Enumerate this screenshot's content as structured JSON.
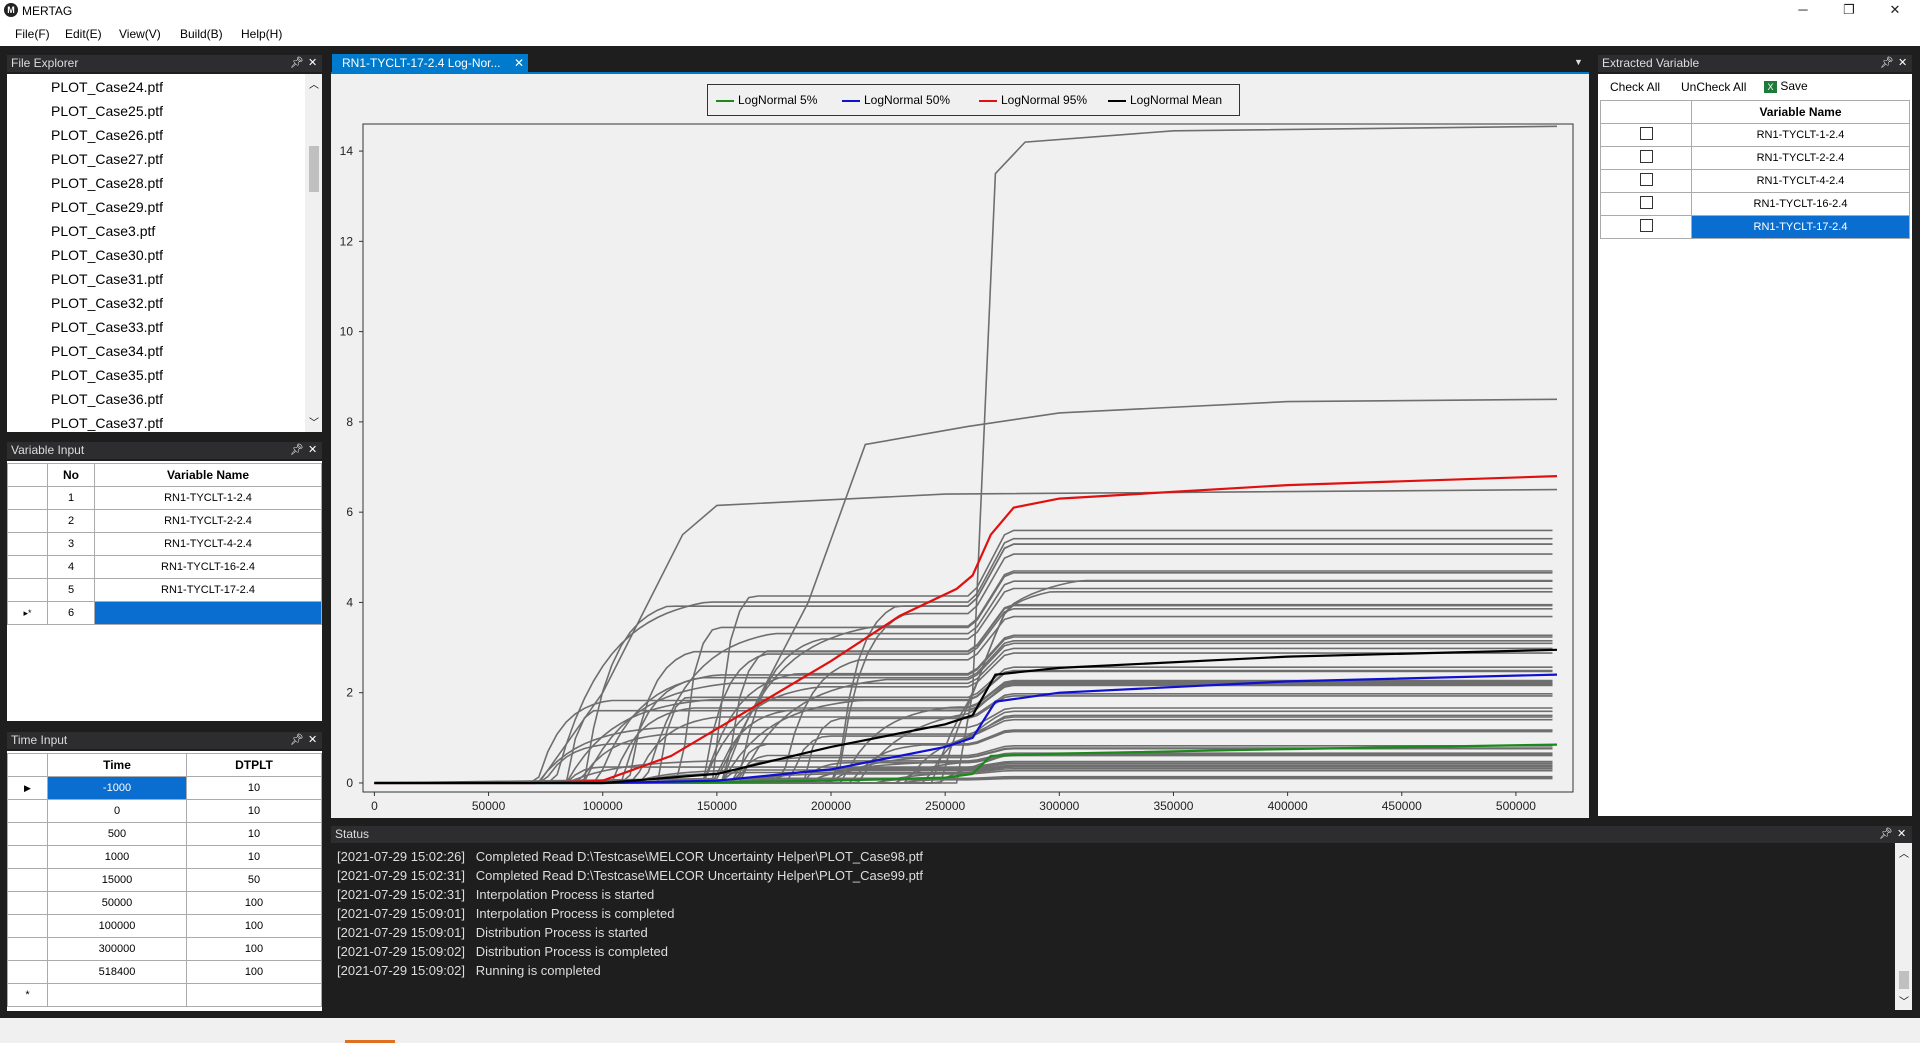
{
  "app": {
    "title": "MERTAG",
    "icon": "mertag-logo-icon"
  },
  "window_controls": [
    "─",
    "❐",
    "✕"
  ],
  "menu": [
    "File(F)",
    "Edit(E)",
    "View(V)",
    "Build(B)",
    "Help(H)"
  ],
  "file_explorer": {
    "title": "File Explorer",
    "files": [
      "PLOT_Case24.ptf",
      "PLOT_Case25.ptf",
      "PLOT_Case26.ptf",
      "PLOT_Case27.ptf",
      "PLOT_Case28.ptf",
      "PLOT_Case29.ptf",
      "PLOT_Case3.ptf",
      "PLOT_Case30.ptf",
      "PLOT_Case31.ptf",
      "PLOT_Case32.ptf",
      "PLOT_Case33.ptf",
      "PLOT_Case34.ptf",
      "PLOT_Case35.ptf",
      "PLOT_Case36.ptf",
      "PLOT_Case37.ptf"
    ]
  },
  "variable_input": {
    "title": "Variable Input",
    "headers": [
      "No",
      "Variable Name"
    ],
    "rows": [
      [
        "1",
        "RN1-TYCLT-1-2.4"
      ],
      [
        "2",
        "RN1-TYCLT-2-2.4"
      ],
      [
        "3",
        "RN1-TYCLT-4-2.4"
      ],
      [
        "4",
        "RN1-TYCLT-16-2.4"
      ],
      [
        "5",
        "RN1-TYCLT-17-2.4"
      ]
    ],
    "new_row": {
      "marker": "▸*",
      "no": "6"
    }
  },
  "time_input": {
    "title": "Time Input",
    "headers": [
      "Time",
      "DTPLT"
    ],
    "rows": [
      [
        "-1000",
        "10"
      ],
      [
        "0",
        "10"
      ],
      [
        "500",
        "10"
      ],
      [
        "1000",
        "10"
      ],
      [
        "15000",
        "50"
      ],
      [
        "50000",
        "100"
      ],
      [
        "100000",
        "100"
      ],
      [
        "300000",
        "100"
      ],
      [
        "518400",
        "100"
      ]
    ],
    "new_row_marker": "*"
  },
  "tab": {
    "label": "RN1-TYCLT-17-2.4 Log-Nor...",
    "close": "✕"
  },
  "chart_data": {
    "type": "line",
    "xlabel": "",
    "ylabel": "",
    "xlim": [
      -5000,
      525000
    ],
    "ylim": [
      -0.2,
      14.6
    ],
    "xticks": [
      0,
      50000,
      100000,
      150000,
      200000,
      250000,
      300000,
      350000,
      400000,
      450000,
      500000
    ],
    "yticks": [
      0,
      2,
      4,
      6,
      8,
      10,
      12,
      14
    ],
    "legend_position": "top-center",
    "grid": false,
    "series": [
      {
        "name": "LogNormal 5%",
        "color": "#1a8a1a",
        "x": [
          0,
          70000,
          100000,
          150000,
          200000,
          250000,
          262000,
          270000,
          300000,
          400000,
          518000
        ],
        "y": [
          0,
          0,
          0,
          0.02,
          0.05,
          0.12,
          0.2,
          0.6,
          0.65,
          0.75,
          0.85
        ]
      },
      {
        "name": "LogNormal 50%",
        "color": "#1010d0",
        "x": [
          0,
          70000,
          100000,
          150000,
          200000,
          250000,
          262000,
          272000,
          300000,
          400000,
          518000
        ],
        "y": [
          0,
          0,
          0,
          0.05,
          0.3,
          0.8,
          1.0,
          1.8,
          2.0,
          2.25,
          2.4
        ]
      },
      {
        "name": "LogNormal 95%",
        "color": "#e01010",
        "x": [
          0,
          70000,
          100000,
          130000,
          160000,
          200000,
          230000,
          255000,
          262000,
          270000,
          280000,
          300000,
          400000,
          518000
        ],
        "y": [
          0,
          0,
          0.05,
          0.6,
          1.5,
          2.7,
          3.7,
          4.3,
          4.6,
          5.5,
          6.1,
          6.3,
          6.6,
          6.8
        ]
      },
      {
        "name": "LogNormal Mean",
        "color": "#000000",
        "x": [
          0,
          70000,
          100000,
          150000,
          200000,
          250000,
          262000,
          272000,
          300000,
          400000,
          518000
        ],
        "y": [
          0,
          0,
          0,
          0.2,
          0.8,
          1.3,
          1.5,
          2.4,
          2.55,
          2.8,
          2.95
        ]
      }
    ]
  },
  "status": {
    "title": "Status",
    "lines": [
      "[2021-07-29 15:02:26]   Completed Read D:\\Testcase\\MELCOR Uncertainty Helper\\PLOT_Case98.ptf",
      "[2021-07-29 15:02:31]   Completed Read D:\\Testcase\\MELCOR Uncertainty Helper\\PLOT_Case99.ptf",
      "[2021-07-29 15:02:31]   Interpolation Process is started",
      "[2021-07-29 15:09:01]   Interpolation Process is completed",
      "[2021-07-29 15:09:01]   Distribution Process is started",
      "[2021-07-29 15:09:02]   Distribution Process is completed",
      "[2021-07-29 15:09:02]   Running is completed"
    ]
  },
  "extracted": {
    "title": "Extracted Variable",
    "check_all": "Check All",
    "uncheck_all": "UnCheck All",
    "save": "Save",
    "header": "Variable Name",
    "rows": [
      "RN1-TYCLT-1-2.4",
      "RN1-TYCLT-2-2.4",
      "RN1-TYCLT-4-2.4",
      "RN1-TYCLT-16-2.4",
      "RN1-TYCLT-17-2.4"
    ]
  },
  "colors": {
    "accent": "#007acc",
    "selection": "#0a6ed1",
    "panel_header": "#2d2d30"
  }
}
